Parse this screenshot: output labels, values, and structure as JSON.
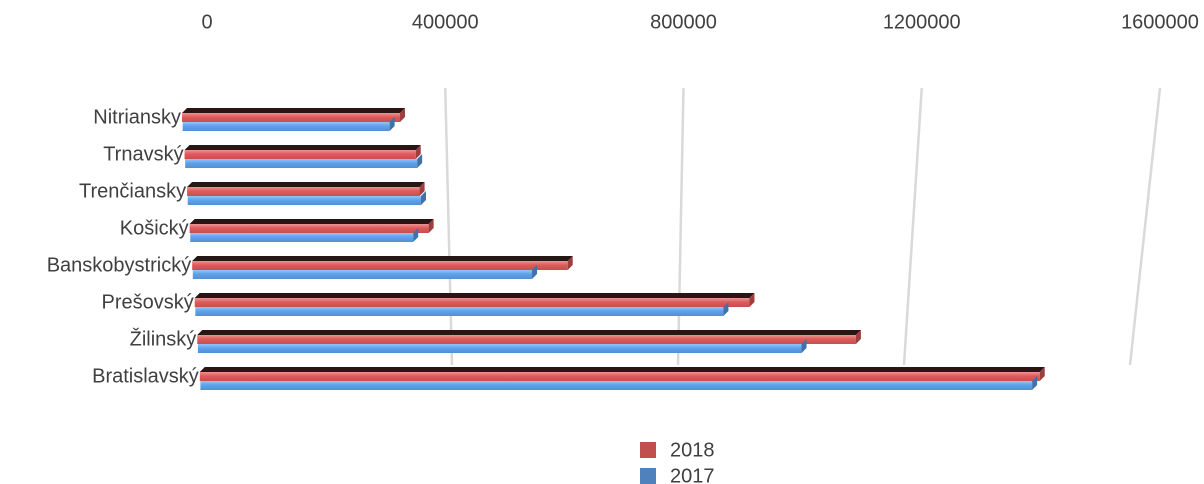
{
  "chart_data": {
    "type": "bar",
    "orientation": "horizontal",
    "style": "3d-perspective",
    "categories": [
      "Nitriansky",
      "Trnavský",
      "Trenčiansky",
      "Košický",
      "Banskobystrický",
      "Prešovský",
      "Žilinský",
      "Bratislavský"
    ],
    "series": [
      {
        "name": "2018",
        "color": "#e05a5a",
        "values": [
          368000,
          393000,
          398000,
          412000,
          652000,
          970000,
          1160000,
          1490000
        ]
      },
      {
        "name": "2017",
        "color": "#5da2ee",
        "values": [
          350000,
          395000,
          400000,
          385000,
          590000,
          925000,
          1065000,
          1478000
        ]
      }
    ],
    "x_ticks": [
      "0",
      "400000",
      "800000",
      "1200000",
      "1600000"
    ],
    "xlim": [
      0,
      1600000
    ],
    "grid": true,
    "legend_position": "bottom"
  }
}
